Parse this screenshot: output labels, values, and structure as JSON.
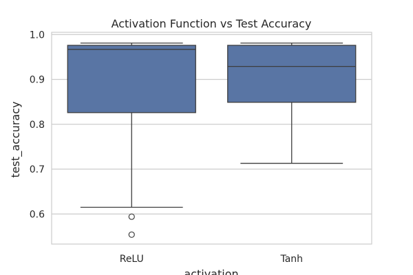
{
  "chart_data": {
    "type": "box",
    "title": "Activation Function vs Test Accuracy",
    "xlabel": "activation",
    "ylabel": "test_accuracy",
    "categories": [
      "ReLU",
      "Tanh"
    ],
    "ylim": [
      0.533,
      1.005
    ],
    "yticks": [
      0.6,
      0.7,
      0.8,
      0.9,
      1.0
    ],
    "ytick_labels": [
      "0.6",
      "0.7",
      "0.8",
      "0.9",
      "1.0"
    ],
    "grid": true,
    "box_color": "#5975a4",
    "line_color": "#3d3d3d",
    "boxes": [
      {
        "category": "ReLU",
        "whisker_low": 0.615,
        "q1": 0.826,
        "median": 0.967,
        "q3": 0.976,
        "whisker_high": 0.981,
        "outliers": [
          0.594,
          0.554
        ]
      },
      {
        "category": "Tanh",
        "whisker_low": 0.713,
        "q1": 0.849,
        "median": 0.929,
        "q3": 0.976,
        "whisker_high": 0.981,
        "outliers": []
      }
    ]
  }
}
